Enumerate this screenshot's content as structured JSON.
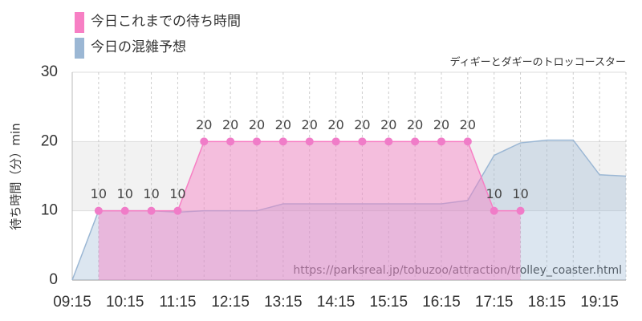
{
  "chart_data": {
    "type": "area",
    "subtitle": "ディギーとダギーのトロッコースター",
    "y_label": "待ち時間（分）min",
    "annotation": "https://parksreal.jp/tobuzoo/attraction/trolley_coaster.html",
    "categories": [
      "09:15",
      null,
      "10:15",
      null,
      "11:15",
      null,
      "12:15",
      null,
      "13:15",
      null,
      "14:15",
      null,
      "15:15",
      null,
      "16:15",
      null,
      "17:15",
      null,
      "18:15",
      null,
      "19:15",
      null
    ],
    "series": [
      {
        "name": "今日これまでの待ち時間",
        "color": "#f77fc4",
        "values": [
          null,
          10,
          10,
          10,
          10,
          20,
          20,
          20,
          20,
          20,
          20,
          20,
          20,
          20,
          20,
          20,
          10,
          10,
          null,
          null,
          null,
          null
        ]
      },
      {
        "name": "今日の混雑予想",
        "color": "#9bb7d4",
        "values": [
          0,
          10,
          10,
          10,
          9.8,
          10,
          10,
          10,
          11,
          11,
          11,
          11,
          11,
          11,
          11,
          11.5,
          18,
          19.8,
          20.2,
          20.2,
          15.2,
          15
        ]
      }
    ],
    "ylim": [
      0,
      30
    ],
    "yticks": [
      0,
      10,
      20,
      30
    ],
    "grid": true
  }
}
